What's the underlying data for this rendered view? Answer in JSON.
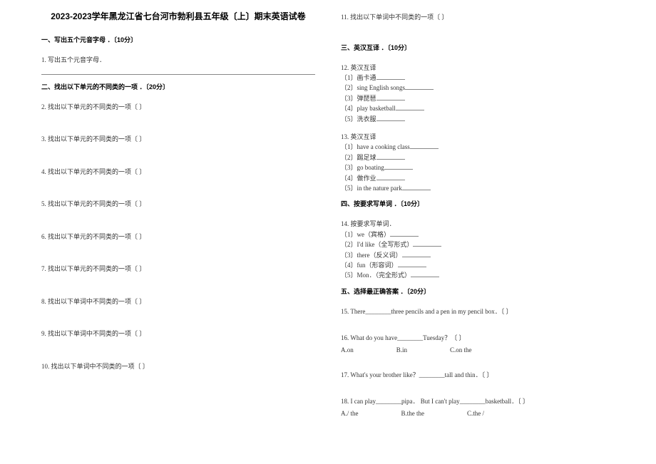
{
  "title": "2023-2023学年黑龙江省七台河市勃利县五年级〔上〕期末英语试卷",
  "s1": {
    "head": "一、写出五个元音字母 ．〔10分〕",
    "q1": "1. 写出五个元音字母．"
  },
  "s2": {
    "head": "二、找出以下单元的不同类的一项 ．〔20分〕",
    "q2": "2. 找出以下单元的不同类的一项〔 〕",
    "q3": "3. 找出以下单元的不同类的一项〔 〕",
    "q4": "4. 找出以下单元的不同类的一项〔 〕",
    "q5": "5. 找出以下单元的不同类的一项〔 〕",
    "q6": "6. 找出以下单元的不同类的一项〔 〕",
    "q7": "7. 找出以下单元的不同类的一项〔 〕",
    "q8": "8. 找出以下单词中不同类的一项〔 〕",
    "q9": "9. 找出以下单词中不同类的一项〔 〕",
    "q10": "10. 找出以下单词中不同类的一项〔 〕",
    "q11": "11. 找出以下单词中不同类的一项〔 〕"
  },
  "s3": {
    "head": "三、英汉互译 ．〔10分〕",
    "q12": "12. 英汉互译",
    "q12_1": "〔1〕画卡通",
    "q12_2": "〔2〕sing English songs",
    "q12_3": "〔3〕弹琵琶",
    "q12_4": "〔4〕play basketball",
    "q12_5": "〔5〕洗衣服",
    "q13": "13. 英汉互译",
    "q13_1": "〔1〕have a cooking class",
    "q13_2": "〔2〕踢足球",
    "q13_3": "〔3〕go boating",
    "q13_4": "〔4〕做作业",
    "q13_5": "〔5〕in the nature park"
  },
  "s4": {
    "head": "四、按要求写单词 ．〔10分〕",
    "q14": "14. 按要求写单词．",
    "q14_1": "〔1〕we（宾格）",
    "q14_2": "〔2〕I'd like（全写形式）",
    "q14_3": "〔3〕there（反义词）",
    "q14_4": "〔4〕fun（形容词）",
    "q14_5": "〔5〕Mon．（完全形式）"
  },
  "s5": {
    "head": "五、选择最正确答案 ．〔20分〕",
    "q15": "15. There________three pencils and a pen in my pencil box．〔 〕",
    "q16": "16. What do you have________Tuesday？〔 〕",
    "q16a": "A.on",
    "q16b": "B.in",
    "q16c": "C.on the",
    "q17": "17. What's your brother like？________tall and thin．〔 〕",
    "q18": "18. I can play________pipa． But I can't play________basketball．〔 〕",
    "q18a": "A./ the",
    "q18b": "B.the the",
    "q18c": "C.the /"
  }
}
